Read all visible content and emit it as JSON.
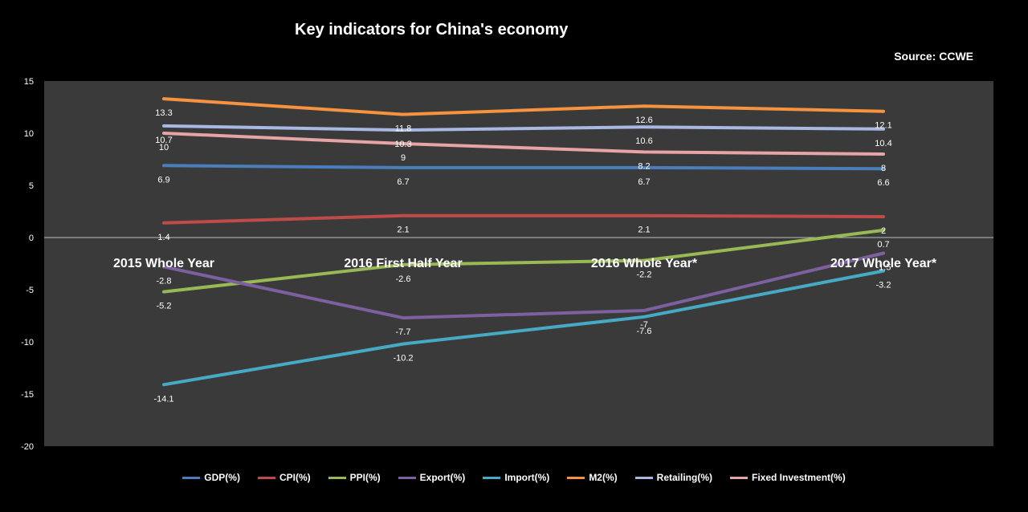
{
  "chart_data": {
    "type": "line",
    "title": "Key indicators for China's economy",
    "source": "Source: CCWE",
    "categories": [
      "2015 Whole Year",
      "2016 First Half Year",
      "2016 Whole Year*",
      "2017 Whole Year*"
    ],
    "ylim": [
      -20,
      15
    ],
    "yticks": [
      15,
      10,
      5,
      0,
      -5,
      -10,
      -15,
      -20
    ],
    "grid": false,
    "legend_position": "bottom",
    "series": [
      {
        "name": "GDP(%)",
        "color": "#4a7ebb",
        "values": [
          6.9,
          6.7,
          6.7,
          6.6
        ]
      },
      {
        "name": "CPI(%)",
        "color": "#be4b48",
        "values": [
          1.4,
          2.1,
          2.1,
          2
        ]
      },
      {
        "name": "PPI(%)",
        "color": "#98b954",
        "values": [
          -5.2,
          -2.6,
          -2.2,
          0.7
        ]
      },
      {
        "name": "Export(%)",
        "color": "#7d60a0",
        "values": [
          -2.8,
          -7.7,
          -7,
          -1.5
        ]
      },
      {
        "name": "Import(%)",
        "color": "#46aac5",
        "values": [
          -14.1,
          -10.2,
          -7.6,
          -3.2
        ]
      },
      {
        "name": "M2(%)",
        "color": "#f69240",
        "values": [
          13.3,
          11.8,
          12.6,
          12.1
        ]
      },
      {
        "name": "Retailing(%)",
        "color": "#a7b9e3",
        "values": [
          10.7,
          10.3,
          10.6,
          10.4
        ]
      },
      {
        "name": "Fixed Investment(%)",
        "color": "#e6a5a4",
        "values": [
          10,
          9,
          8.2,
          8
        ]
      }
    ]
  }
}
